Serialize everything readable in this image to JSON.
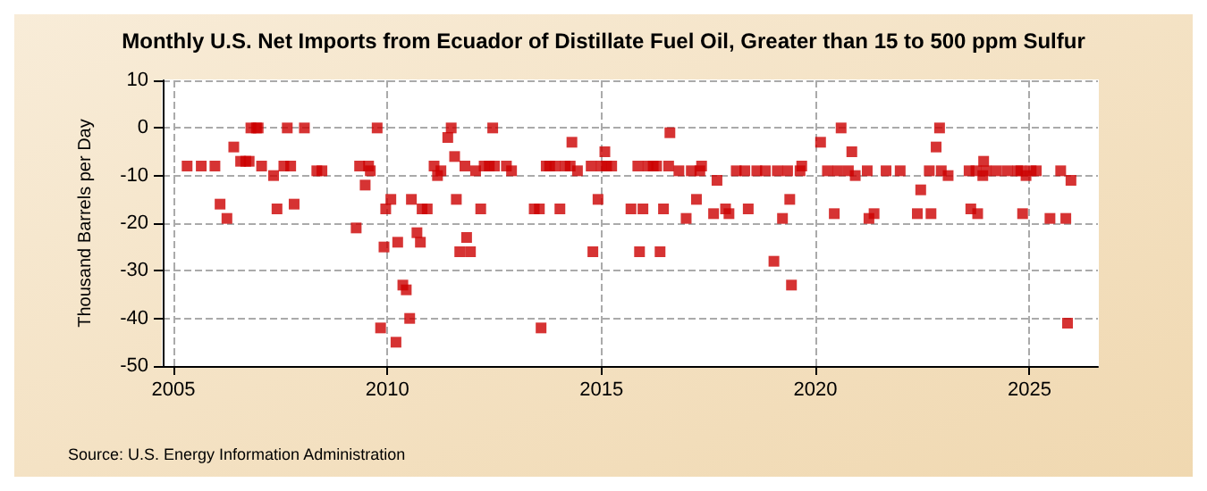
{
  "chart_data": {
    "type": "scatter",
    "title": "Monthly U.S. Net Imports from Ecuador of Distillate Fuel Oil, Greater than 15 to 500 ppm Sulfur",
    "ylabel": "Thousand Barrels per Day",
    "annotations": [
      "Source: U.S. Energy Information Administration"
    ],
    "x": [
      2005.32,
      2005.65,
      2005.97,
      2006.09,
      2006.25,
      2006.41,
      2006.57,
      2006.69,
      2006.77,
      2006.81,
      2006.94,
      2006.98,
      2007.06,
      2007.34,
      2007.42,
      2007.58,
      2007.66,
      2007.74,
      2007.82,
      2008.06,
      2008.35,
      2008.47,
      2009.27,
      2009.35,
      2009.48,
      2009.56,
      2009.6,
      2009.76,
      2009.84,
      2009.92,
      2009.96,
      2010.08,
      2010.2,
      2010.24,
      2010.36,
      2010.44,
      2010.52,
      2010.56,
      2010.69,
      2010.77,
      2010.81,
      2010.93,
      2011.09,
      2011.17,
      2011.25,
      2011.41,
      2011.49,
      2011.57,
      2011.61,
      2011.69,
      2011.81,
      2011.85,
      2011.94,
      2012.06,
      2012.18,
      2012.26,
      2012.38,
      2012.46,
      2012.5,
      2012.78,
      2012.9,
      2013.43,
      2013.55,
      2013.59,
      2013.71,
      2013.79,
      2013.91,
      2014.03,
      2014.15,
      2014.27,
      2014.31,
      2014.44,
      2014.76,
      2014.8,
      2014.92,
      2015.0,
      2015.08,
      2015.12,
      2015.24,
      2015.69,
      2015.85,
      2015.89,
      2015.97,
      2016.09,
      2016.21,
      2016.29,
      2016.37,
      2016.45,
      2016.57,
      2016.6,
      2016.81,
      2016.98,
      2017.1,
      2017.22,
      2017.3,
      2017.34,
      2017.62,
      2017.7,
      2017.9,
      2017.98,
      2018.15,
      2018.35,
      2018.43,
      2018.63,
      2018.83,
      2019.03,
      2019.11,
      2019.23,
      2019.35,
      2019.4,
      2019.44,
      2019.64,
      2019.68,
      2020.12,
      2020.28,
      2020.44,
      2020.52,
      2020.6,
      2020.77,
      2020.85,
      2020.93,
      2021.21,
      2021.25,
      2021.37,
      2021.65,
      2021.98,
      2022.38,
      2022.46,
      2022.66,
      2022.7,
      2022.82,
      2022.9,
      2022.94,
      2023.1,
      2023.59,
      2023.63,
      2023.75,
      2023.79,
      2023.91,
      2023.93,
      2023.99,
      2024.23,
      2024.48,
      2024.72,
      2024.8,
      2024.84,
      2024.92,
      2025.04,
      2025.16,
      2025.48,
      2025.73,
      2025.85,
      2025.89,
      2025.97
    ],
    "values": [
      -8,
      -8,
      -8,
      -16,
      -19,
      -4,
      -7,
      -7,
      -7,
      0,
      0,
      0,
      -8,
      -10,
      -17,
      -8,
      0,
      -8,
      -16,
      0,
      -9,
      -9,
      -21,
      -8,
      -12,
      -8,
      -9,
      0,
      -42,
      -25,
      -17,
      -15,
      -45,
      -24,
      -33,
      -34,
      -40,
      -15,
      -22,
      -24,
      -17,
      -17,
      -8,
      -10,
      -9,
      -2,
      0,
      -6,
      -15,
      -26,
      -8,
      -23,
      -26,
      -9,
      -17,
      -8,
      -8,
      0,
      -8,
      -8,
      -9,
      -17,
      -17,
      -42,
      -8,
      -8,
      -8,
      -17,
      -8,
      -8,
      -3,
      -9,
      -8,
      -26,
      -15,
      -8,
      -5,
      -8,
      -8,
      -17,
      -8,
      -26,
      -17,
      -8,
      -8,
      -8,
      -26,
      -17,
      -8,
      -1,
      -9,
      -19,
      -9,
      -15,
      -9,
      -8,
      -18,
      -11,
      -17,
      -18,
      -9,
      -9,
      -17,
      -9,
      -9,
      -28,
      -9,
      -19,
      -9,
      -15,
      -33,
      -9,
      -8,
      -3,
      -9,
      -18,
      -9,
      0,
      -9,
      -5,
      -10,
      -9,
      -19,
      -18,
      -9,
      -9,
      -18,
      -13,
      -9,
      -18,
      -4,
      0,
      -9,
      -10,
      -9,
      -17,
      -9,
      -18,
      -10,
      -7,
      -9,
      -9,
      -9,
      -9,
      -9,
      -18,
      -10,
      -9,
      -9,
      -19,
      -9,
      -19,
      -41,
      -11
    ],
    "color": "#cc0000",
    "marker": "square",
    "grid": true,
    "xlim": [
      2004.75,
      2026.6
    ],
    "xticks": [
      2005,
      2010,
      2015,
      2020,
      2025
    ],
    "ylim": [
      -50,
      10
    ],
    "yticks": [
      -50,
      -40,
      -30,
      -20,
      -10,
      0,
      10
    ]
  }
}
